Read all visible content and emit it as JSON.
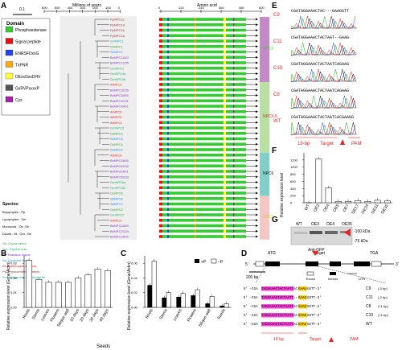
{
  "panels": {
    "A": "A",
    "B": "B",
    "C": "C",
    "D": "D",
    "E": "E",
    "F": "F",
    "G": "G"
  },
  "panel_a": {
    "scale_bar": "0.1",
    "time_axis_label": "Millions of years",
    "time_ticks": [
      "600",
      "500",
      "400",
      "300",
      "200",
      "100",
      "0"
    ],
    "amino_axis_label": "Amino acid",
    "amino_ticks": [
      "0",
      "120",
      "240",
      "360",
      "480",
      "600"
    ],
    "domain_title": "Domain",
    "domains": [
      {
        "name": "Phosphoesterase",
        "color": "#33cc33"
      },
      {
        "name": "Signal peptide",
        "color": "#ee1111"
      },
      {
        "name": "ENRSFDxxG",
        "color": "#2244ee"
      },
      {
        "name": "TxPNR",
        "color": "#ffaa00"
      },
      {
        "name": "DExxGxxDHV",
        "color": "#ffff33"
      },
      {
        "name": "GxRVPxxxxP",
        "color": "#555555"
      },
      {
        "name": "Cys",
        "color": "#aa22aa"
      }
    ],
    "species_title": "Species:",
    "species_groups": [
      "Bryophytes : Pp",
      "Lycophytes : Sm",
      "Monocots : Os ,Sb",
      "Dicots : At , Gm , Bn"
    ],
    "species_list": [
      {
        "text": "Os, Oryza sativa",
        "color": "#33aa33"
      },
      {
        "text": "Gm, Glycine max",
        "color": "#11bb66"
      },
      {
        "text": "Bn, Brassica napus",
        "color": "#8833cc"
      },
      {
        "text": "Sb, Sorghum bicolor",
        "color": "#2288ee"
      },
      {
        "text": "At, Arabidopsis thaliana",
        "color": "#ee2222"
      },
      {
        "text": "Pp, Physcomitrella patens",
        "color": "#993333"
      },
      {
        "text": "Sm, Selaginella moellendorffii",
        "color": "#22aaaa"
      }
    ],
    "genes": [
      {
        "name": "PpNPC1c",
        "color": "#993333"
      },
      {
        "name": "PpNPC1d",
        "color": "#993333"
      },
      {
        "name": "PpNPC1b",
        "color": "#993333"
      },
      {
        "name": "PpNPC1a",
        "color": "#993333"
      },
      {
        "name": "SmNPC1",
        "color": "#22aaaa"
      },
      {
        "name": "OsNPC1",
        "color": "#33aa33"
      },
      {
        "name": "SbNPC1",
        "color": "#2288ee"
      },
      {
        "name": "BnNPC1A10",
        "color": "#8833cc"
      },
      {
        "name": "BnNPC1C05",
        "color": "#8833cc"
      },
      {
        "name": "GmNPC1",
        "color": "#11bb66"
      },
      {
        "name": "GmNPC4a",
        "color": "#11bb66"
      },
      {
        "name": "GmNPC4b",
        "color": "#11bb66"
      },
      {
        "name": "AtNPC2",
        "color": "#ee2222"
      },
      {
        "name": "BnNPC3C05",
        "color": "#8833cc"
      },
      {
        "name": "BnNPC3A05",
        "color": "#8833cc"
      },
      {
        "name": "BnNPC4C01",
        "color": "#8833cc"
      },
      {
        "name": "BnNPC4A01",
        "color": "#8833cc"
      },
      {
        "name": "AtNPC4",
        "color": "#ee2222"
      },
      {
        "name": "AtNPC5",
        "color": "#ee2222"
      },
      {
        "name": "AtNPC3",
        "color": "#ee2222"
      },
      {
        "name": "GmNPC3",
        "color": "#11bb66"
      },
      {
        "name": "OsNPC3",
        "color": "#33aa33"
      },
      {
        "name": "SbNPC3",
        "color": "#2288ee"
      },
      {
        "name": "OsNPC4",
        "color": "#33aa33"
      },
      {
        "name": "SbNPC4",
        "color": "#2288ee"
      },
      {
        "name": "AtNPC6",
        "color": "#ee2222"
      },
      {
        "name": "BnNPC6A05",
        "color": "#8833cc"
      },
      {
        "name": "BnNPC6C05",
        "color": "#8833cc"
      },
      {
        "name": "BnNPC6A01",
        "color": "#8833cc"
      },
      {
        "name": "BnNPC6C03",
        "color": "#8833cc"
      },
      {
        "name": "GmNPC6a",
        "color": "#11bb66"
      },
      {
        "name": "GmNPC6b",
        "color": "#11bb66"
      },
      {
        "name": "OsNPC6",
        "color": "#33aa33"
      },
      {
        "name": "SbNPC6",
        "color": "#2288ee"
      },
      {
        "name": "SbNPC2",
        "color": "#2288ee"
      },
      {
        "name": "OsNPC2",
        "color": "#33aa33"
      },
      {
        "name": "GmNPC2",
        "color": "#11bb66"
      },
      {
        "name": "AtNPC2",
        "color": "#ee2222"
      },
      {
        "name": "BnNPC2A09",
        "color": "#8833cc"
      },
      {
        "name": "BnNPC2C04",
        "color": "#8833cc"
      },
      {
        "name": "BnNPC2A04",
        "color": "#8833cc"
      }
    ],
    "clades": [
      {
        "label": "NPC1",
        "color": "#c48ac6",
        "label_color": "#33cc33"
      },
      {
        "label": "NPC3-5",
        "color": "#b8e0a3",
        "label_color": "#ee2222"
      },
      {
        "label": "NPC6",
        "color": "#82cfc9",
        "label_color": "#111111"
      },
      {
        "label": "NPC2",
        "color": "#f4c6c4",
        "label_color": "#ddcc22"
      }
    ]
  },
  "panel_b": {
    "ylabel": "Relative expression level (Gene/Actin)",
    "yticks": [
      "0.00",
      "0.01",
      "0.02",
      "0.03"
    ],
    "xlabel_group": "Seeds",
    "chart_data": {
      "type": "bar",
      "categories": [
        "Roots",
        "Stems",
        "Leaves",
        "Flowers",
        "Silique wall",
        "10 days",
        "20 days",
        "30 days",
        "40 days"
      ],
      "values": [
        0.032,
        0.019,
        0.017,
        0.017,
        0.017,
        0.02,
        0.022,
        0.026,
        0.025
      ],
      "ylim": [
        0,
        0.035
      ]
    }
  },
  "panel_c": {
    "ylabel": "Relative expression level (Gene/Actin)",
    "yticks": [
      "0.00",
      "0.02",
      "0.04",
      "0.06"
    ],
    "chart_data": {
      "type": "bar",
      "categories": [
        "Roots",
        "Stems",
        "Leaves",
        "Flowers",
        "Silique wall",
        "Seeds"
      ],
      "series": [
        {
          "name": "+P",
          "values": [
            0.03,
            0.013,
            0.014,
            0.016,
            0.005,
            0.002
          ]
        },
        {
          "name": "−P",
          "values": [
            0.063,
            0.02,
            0.019,
            0.024,
            0.015,
            0.005
          ]
        }
      ],
      "ylim": [
        0,
        0.07
      ]
    }
  },
  "panel_d": {
    "atg": "ATG",
    "target": "Target",
    "tga": "TGA",
    "prime5": "5'",
    "prime3": "3'",
    "scale": "200 bp",
    "legend": {
      "exons": "Exons",
      "introns": "Introns",
      "utr": "UTR"
    },
    "seqs": [
      {
        "prefix": "5' -CGA",
        "target": "TAGGAAACTACTAATC",
        "mid": "AC",
        "pam": "GAAG",
        "suffix": "GGTT-3'",
        "id": "C9",
        "note": "(-5 bp)"
      },
      {
        "prefix": "5' -CGA",
        "target": "TAGGAAACTACTAATC",
        "mid": "--",
        "pam": "GAAG",
        "suffix": "GGTT-3'",
        "id": "C11",
        "note": "(-2 bp)"
      },
      {
        "prefix": "5' -CGA",
        "target": "TAGGAAACTACTAATC",
        "mid": "AC",
        "pam": "GAAG",
        "suffix": "GGTT-3'",
        "id": "C8",
        "note": "(+1 bp)"
      },
      {
        "prefix": "5' -CGA",
        "target": "TAGGAAACTACTAATC",
        "mid": "AC",
        "pam": "GAAG",
        "suffix": "GGTT-3'",
        "id": "C10",
        "note": "(+1 bp)"
      },
      {
        "prefix": "5' -CGA",
        "target": "TAGGAAACTACTAATC",
        "mid": "AC",
        "pam": "GAAG",
        "suffix": "GGTT-3'",
        "id": "WT",
        "note": ""
      }
    ],
    "bp19": "19-bp",
    "target2": "Target",
    "pam": "PAM"
  },
  "panel_e": {
    "rows": [
      {
        "id": "C9",
        "seq": "CGATAGGAAACTAC---GAAGGTT"
      },
      {
        "id": "C11",
        "seq": "CGATAGGAAACTACTAAT--GAAG"
      },
      {
        "id": "C10",
        "seq": "CGATAGGAAACTACTAATCAGAAG"
      },
      {
        "id": "C8",
        "seq": "CGATAGGAAACTACTAATCAGAAG"
      },
      {
        "id": "WT",
        "seq": "CGATAGGAAACTACTAATCACGAAGG"
      }
    ],
    "bp19": "19-bp",
    "target": "Target",
    "pam": "PAM"
  },
  "panel_f": {
    "ylabel": "Relative expression level",
    "yticks": [
      "0",
      "200",
      "400",
      "600",
      "800",
      "1000",
      "1200"
    ],
    "chart_data": {
      "type": "bar",
      "categories": [
        "WT",
        "OE3",
        "OE4",
        "OE5",
        "OE7",
        "OE17",
        "OE24",
        "OE31",
        "OE35"
      ],
      "values": [
        1,
        1230,
        420,
        40,
        40,
        60,
        40,
        70,
        50
      ],
      "ylim": [
        0,
        1400
      ]
    }
  },
  "panel_g": {
    "lanes": [
      "WT",
      "OE3",
      "OE4",
      "OE35"
    ],
    "markers": [
      "-100 kDa",
      "-75 kDa"
    ],
    "caption": "Anti-GFP"
  }
}
